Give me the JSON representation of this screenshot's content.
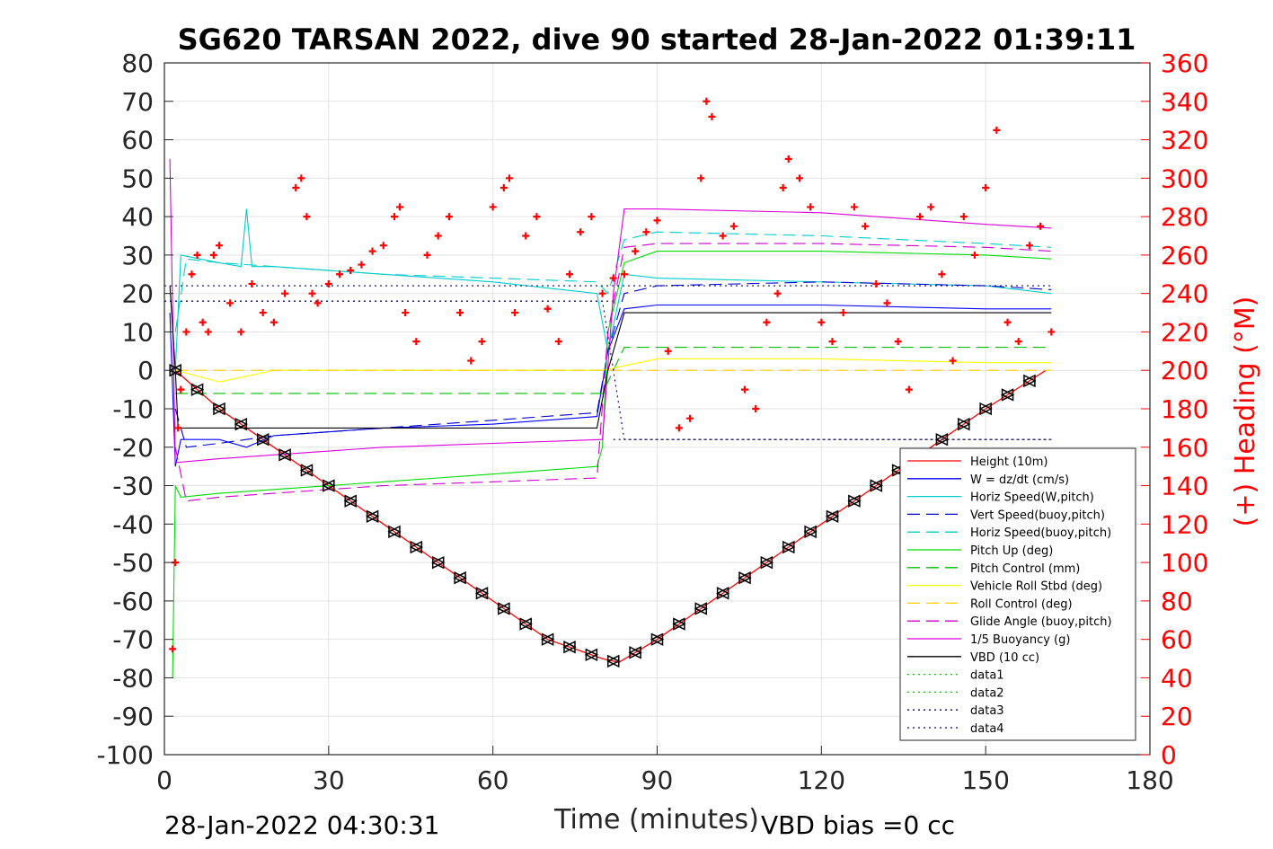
{
  "chart_data": {
    "type": "line",
    "title": "SG620 TARSAN 2022, dive 90 started 28-Jan-2022 01:39:11",
    "xlabel": "Time (minutes)",
    "ylabel": "",
    "ylabel_right": "(+) Heading (°M)",
    "xlim": [
      0,
      180
    ],
    "ylim": [
      -100,
      80
    ],
    "ylim_right": [
      0,
      360
    ],
    "xticks": [
      0,
      30,
      60,
      90,
      120,
      150,
      180
    ],
    "yticks": [
      80,
      70,
      60,
      50,
      40,
      30,
      20,
      10,
      0,
      -10,
      -20,
      -30,
      -40,
      -50,
      -60,
      -70,
      -80,
      -90,
      -100
    ],
    "yticks_right": [
      360,
      340,
      320,
      300,
      280,
      260,
      240,
      220,
      200,
      180,
      160,
      140,
      120,
      100,
      80,
      60,
      40,
      20,
      0
    ],
    "grid": true,
    "legend_position": "bottom-right",
    "footer_left": "28-Jan-2022 04:30:31",
    "footer_right": "VBD bias =0 cc",
    "colors": {
      "heading": "#ff0000",
      "right_axis": "#ff0000"
    },
    "series": [
      {
        "name": "Height (10m)",
        "color": "#ff0000",
        "style": "solid",
        "x": [
          2,
          10,
          20,
          30,
          40,
          50,
          60,
          70,
          80,
          83,
          90,
          100,
          110,
          120,
          130,
          140,
          150,
          161
        ],
        "y": [
          0,
          -10,
          -20,
          -30,
          -40,
          -50,
          -60,
          -70,
          -75,
          -76,
          -70,
          -60,
          -50,
          -40,
          -30,
          -20,
          -10,
          0
        ]
      },
      {
        "name": "W = dz/dt (cm/s)",
        "color": "#0000ff",
        "style": "solid",
        "x": [
          1,
          2,
          3,
          10,
          15,
          20,
          40,
          60,
          79,
          81,
          84,
          90,
          120,
          150,
          162
        ],
        "y": [
          15,
          -25,
          -18,
          -18,
          -20,
          -17,
          -15,
          -14,
          -12,
          5,
          16,
          17,
          17,
          16,
          16
        ]
      },
      {
        "name": "Horiz Speed(W,pitch)",
        "color": "#00cccc",
        "style": "solid",
        "x": [
          2,
          3,
          10,
          14,
          15,
          16,
          20,
          40,
          60,
          79,
          81,
          84,
          90,
          120,
          150,
          162
        ],
        "y": [
          0,
          30,
          28,
          27,
          42,
          27,
          27,
          25,
          23,
          20,
          5,
          25,
          24,
          23,
          22,
          20
        ]
      },
      {
        "name": "Vert Speed(buoy,pitch)",
        "color": "#0000cc",
        "style": "dashed",
        "x": [
          2,
          4,
          10,
          20,
          40,
          60,
          79,
          81,
          84,
          90,
          120,
          150,
          162
        ],
        "y": [
          -10,
          -20,
          -19,
          -17,
          -15,
          -13,
          -11,
          5,
          20,
          22,
          23,
          22,
          21
        ]
      },
      {
        "name": "Horiz Speed(buoy,pitch)",
        "color": "#00cccc",
        "style": "dashed",
        "x": [
          2,
          4,
          10,
          20,
          40,
          60,
          79,
          81,
          84,
          90,
          120,
          150,
          162
        ],
        "y": [
          10,
          29,
          28,
          27,
          25,
          24,
          23,
          20,
          34,
          36,
          35,
          33,
          32
        ]
      },
      {
        "name": "Pitch Up (deg)",
        "color": "#00dd00",
        "style": "solid",
        "x": [
          1.5,
          2,
          3,
          10,
          20,
          40,
          60,
          79,
          80,
          81,
          84,
          90,
          120,
          150,
          162
        ],
        "y": [
          -80,
          -30,
          -33,
          -32,
          -31,
          -29,
          -27,
          -25,
          -20,
          10,
          28,
          31,
          31,
          30,
          29
        ]
      },
      {
        "name": "Pitch Control (mm)",
        "color": "#00bb00",
        "style": "dashed",
        "x": [
          2,
          80,
          84,
          162
        ],
        "y": [
          -6,
          -6,
          6,
          6
        ]
      },
      {
        "name": "Vehicle Roll Stbd (deg)",
        "color": "#ffff00",
        "style": "solid",
        "x": [
          2,
          10,
          20,
          40,
          60,
          80,
          90,
          120,
          150,
          162
        ],
        "y": [
          0,
          -3,
          0,
          0,
          0,
          0,
          3,
          3,
          2,
          2
        ]
      },
      {
        "name": "Roll Control (deg)",
        "color": "#ffcc00",
        "style": "dashed",
        "x": [
          2,
          162
        ],
        "y": [
          0,
          0
        ]
      },
      {
        "name": "Glide Angle (buoy,pitch)",
        "color": "#cc00cc",
        "style": "dashed",
        "x": [
          2,
          4,
          10,
          20,
          40,
          60,
          79,
          81,
          84,
          90,
          120,
          150,
          162
        ],
        "y": [
          -20,
          -34,
          -33,
          -32,
          -30,
          -29,
          -28,
          10,
          32,
          33,
          33,
          32,
          31
        ]
      },
      {
        "name": "1/5 Buoyancy (g)",
        "color": "#dd00dd",
        "style": "solid",
        "x": [
          1,
          2,
          10,
          20,
          40,
          60,
          80,
          82,
          84,
          90,
          120,
          150,
          162
        ],
        "y": [
          55,
          -24,
          -23,
          -22,
          -20,
          -19,
          -18,
          20,
          42,
          42,
          41,
          38,
          37
        ]
      },
      {
        "name": "VBD (10 cc)",
        "color": "#000000",
        "style": "solid",
        "x": [
          1,
          2,
          2.5,
          10,
          30,
          60,
          79,
          81,
          84,
          90,
          120,
          150,
          162
        ],
        "y": [
          22,
          0,
          -15,
          -15,
          -15,
          -15,
          -15,
          0,
          15,
          15,
          15,
          15,
          15
        ]
      },
      {
        "name": "data1",
        "color": "#00cc00",
        "style": "dotted",
        "x": [],
        "y": []
      },
      {
        "name": "data2",
        "color": "#00cc00",
        "style": "dotted",
        "x": [],
        "y": []
      },
      {
        "name": "data3",
        "color": "#000088",
        "style": "dotted",
        "x": [
          0,
          80,
          84,
          162
        ],
        "y": [
          22,
          22,
          22,
          22
        ]
      },
      {
        "name": "data4",
        "color": "#000088",
        "style": "dotted",
        "x": [
          0,
          80,
          84,
          162
        ],
        "y": [
          18,
          18,
          -18,
          -18
        ]
      }
    ],
    "extra_reference_lines": [
      {
        "color": "#000000",
        "style": "dotted",
        "x": [
          0,
          82
        ],
        "y": [
          18,
          18
        ]
      },
      {
        "color": "#000000",
        "style": "dotted",
        "x": [
          82,
          162
        ],
        "y": [
          -18,
          -18
        ]
      }
    ],
    "heading_markers": {
      "axis": "right",
      "marker": "+",
      "color": "#ff0000",
      "x": [
        1.5,
        2,
        2.5,
        3,
        4,
        5,
        6,
        7,
        8,
        9,
        10,
        12,
        14,
        16,
        18,
        20,
        22,
        24,
        25,
        26,
        27,
        28,
        30,
        32,
        34,
        36,
        38,
        40,
        42,
        43,
        44,
        46,
        48,
        50,
        52,
        54,
        56,
        58,
        60,
        62,
        63,
        64,
        66,
        68,
        70,
        72,
        74,
        76,
        78,
        80,
        82,
        84,
        86,
        88,
        90,
        92,
        94,
        96,
        98,
        99,
        100,
        102,
        104,
        106,
        108,
        110,
        112,
        113,
        114,
        116,
        118,
        120,
        122,
        124,
        126,
        128,
        130,
        132,
        134,
        136,
        138,
        140,
        142,
        144,
        146,
        148,
        150,
        152,
        154,
        156,
        158,
        160,
        162
      ],
      "y": [
        55,
        100,
        170,
        190,
        220,
        250,
        260,
        225,
        220,
        260,
        265,
        235,
        220,
        245,
        230,
        225,
        240,
        295,
        300,
        280,
        240,
        235,
        245,
        250,
        252,
        255,
        262,
        265,
        280,
        285,
        230,
        215,
        260,
        270,
        280,
        230,
        205,
        215,
        285,
        295,
        300,
        230,
        270,
        280,
        232,
        215,
        250,
        272,
        280,
        240,
        248,
        250,
        262,
        272,
        278,
        210,
        170,
        175,
        300,
        340,
        332,
        270,
        275,
        190,
        180,
        225,
        240,
        295,
        310,
        300,
        285,
        225,
        215,
        230,
        285,
        275,
        245,
        235,
        215,
        190,
        280,
        285,
        250,
        205,
        280,
        260,
        295,
        325,
        225,
        215,
        265,
        275,
        220
      ]
    }
  }
}
